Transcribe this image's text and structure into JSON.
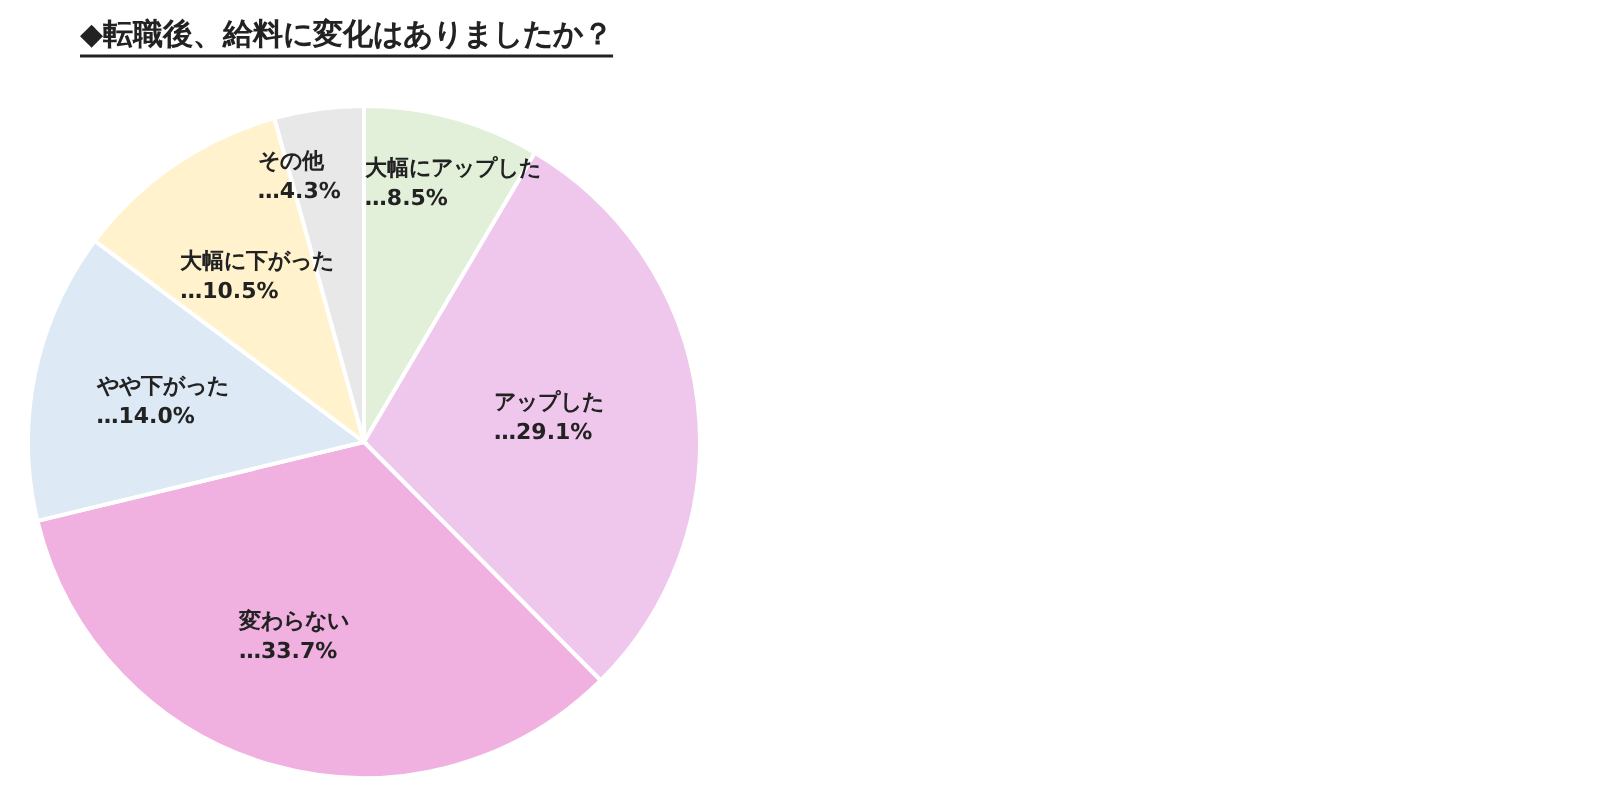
{
  "chart_data": {
    "type": "pie",
    "title": "◆転職後、給料に変化はありましたか？",
    "categories": [
      "大幅にアップした",
      "アップした",
      "変わらない",
      "やや下がった",
      "大幅に下がった",
      "その他"
    ],
    "values": [
      8.5,
      29.1,
      33.7,
      14.0,
      10.5,
      4.3
    ],
    "value_labels": [
      "…8.5%",
      "…29.1%",
      "…33.7%",
      "…14.0%",
      "…10.5%",
      "…4.3%"
    ],
    "colors": [
      "#e2efd9",
      "#efc6ec",
      "#f0b0e0",
      "#dde9f5",
      "#fff2cc",
      "#e8e8e8"
    ],
    "legend": false
  }
}
